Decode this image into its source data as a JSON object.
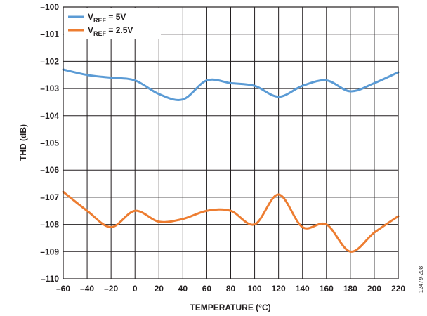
{
  "figure_id": "12479-208",
  "chart_data": {
    "type": "line",
    "xlabel": "TEMPERATURE (°C)",
    "ylabel": "THD (dB)",
    "xlim": [
      -60,
      220
    ],
    "ylim": [
      -110,
      -100
    ],
    "xticks": [
      -60,
      -40,
      -20,
      0,
      20,
      40,
      60,
      80,
      100,
      120,
      140,
      160,
      180,
      200,
      220
    ],
    "yticks": [
      -110,
      -109,
      -108,
      -107,
      -106,
      -105,
      -104,
      -103,
      -102,
      -101,
      -100
    ],
    "xtick_labels": [
      "–60",
      "–40",
      "–20",
      "0",
      "20",
      "40",
      "60",
      "80",
      "100",
      "120",
      "140",
      "160",
      "180",
      "200",
      "220"
    ],
    "ytick_labels": [
      "–110",
      "–109",
      "–108",
      "–107",
      "–106",
      "–105",
      "–104",
      "–103",
      "–102",
      "–101",
      "–100"
    ],
    "grid": true,
    "legend_position": "top-left",
    "series": [
      {
        "name": "VREF = 5V",
        "label_main": "V",
        "label_sub": "REF",
        "label_tail": " = 5V",
        "color": "#5b9bd5",
        "x": [
          -60,
          -40,
          -20,
          0,
          20,
          40,
          60,
          80,
          100,
          120,
          140,
          160,
          180,
          200,
          220
        ],
        "y": [
          -102.3,
          -102.5,
          -102.6,
          -102.7,
          -103.2,
          -103.4,
          -102.7,
          -102.8,
          -102.9,
          -103.3,
          -102.9,
          -102.7,
          -103.1,
          -102.8,
          -102.4
        ]
      },
      {
        "name": "VREF = 2.5V",
        "label_main": "V",
        "label_sub": "REF",
        "label_tail": " = 2.5V",
        "color": "#ed7d31",
        "x": [
          -60,
          -40,
          -20,
          0,
          20,
          40,
          60,
          80,
          100,
          120,
          140,
          160,
          180,
          200,
          220
        ],
        "y": [
          -106.8,
          -107.5,
          -108.1,
          -107.5,
          -107.9,
          -107.8,
          -107.5,
          -107.5,
          -108.0,
          -106.9,
          -108.1,
          -108.0,
          -109.0,
          -108.3,
          -107.7
        ]
      }
    ]
  }
}
